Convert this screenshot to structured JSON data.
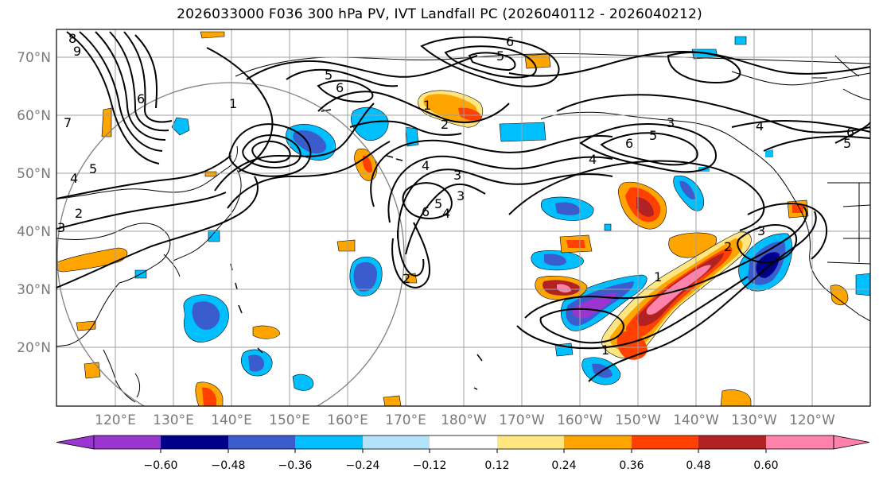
{
  "title": "2026033000 F036 300 hPa PV, IVT Landfall PC (2026040112 - 2026040212)",
  "latitude_labels": [
    "70°N",
    "60°N",
    "50°N",
    "40°N",
    "30°N",
    "20°N"
  ],
  "longitude_labels": [
    "120°E",
    "130°E",
    "140°E",
    "150°E",
    "160°E",
    "170°E",
    "180°W",
    "170°W",
    "160°W",
    "150°W",
    "140°W",
    "130°W",
    "120°W"
  ],
  "colorbar": {
    "ticks": [
      "−0.60",
      "−0.48",
      "−0.36",
      "−0.24",
      "−0.12",
      "0.12",
      "0.24",
      "0.36",
      "0.48",
      "0.60"
    ],
    "colors": [
      "#9a35cf",
      "#00008b",
      "#3a5ccc",
      "#00bfff",
      "#b3e2fb",
      "#ffffff",
      "#ffe680",
      "#ffa500",
      "#ff4000",
      "#b22222",
      "#ff82ab",
      "#ff82ab"
    ]
  },
  "contour_labels": [
    "9",
    "8",
    "7",
    "6",
    "5",
    "4",
    "3",
    "2",
    "1",
    "6",
    "5",
    "4",
    "3",
    "2",
    "1",
    "5",
    "6",
    "6",
    "5",
    "4",
    "3",
    "6",
    "5",
    "4",
    "3",
    "2",
    "1",
    "3",
    "2",
    "1",
    "4",
    "5",
    "6"
  ]
}
